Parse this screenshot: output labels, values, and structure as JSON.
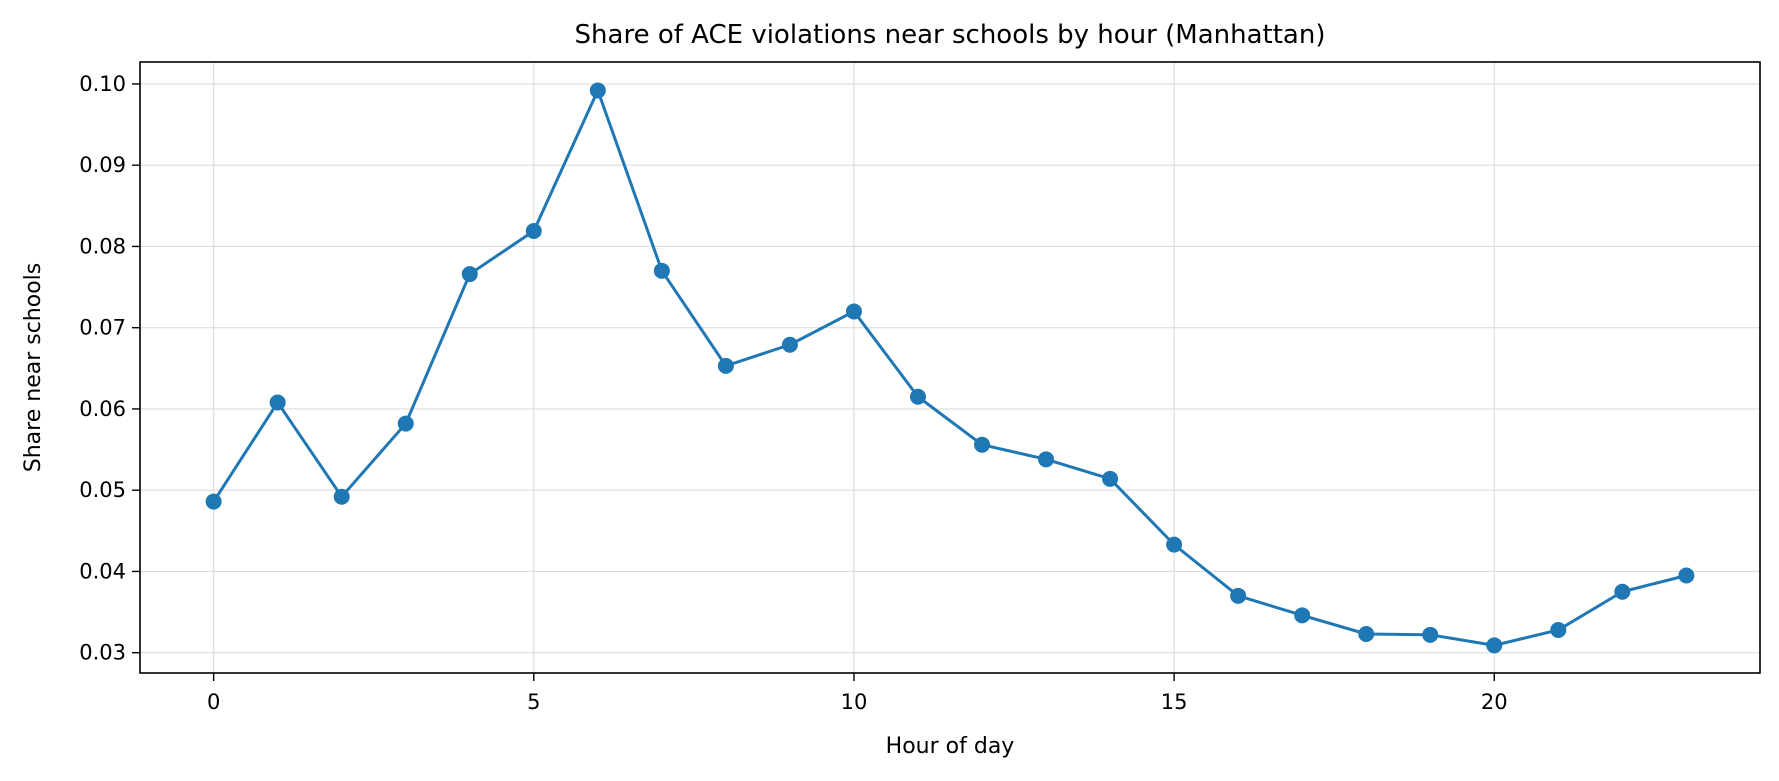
{
  "chart_data": {
    "type": "line",
    "title": "Share of ACE violations near schools by hour (Manhattan)",
    "xlabel": "Hour of day",
    "ylabel": "Share near schools",
    "xlim": [
      -1.15,
      24.15
    ],
    "ylim": [
      0.0275,
      0.1027
    ],
    "xticks": [
      0,
      5,
      10,
      15,
      20
    ],
    "yticks": [
      0.03,
      0.04,
      0.05,
      0.06,
      0.07,
      0.08,
      0.09,
      0.1
    ],
    "ytick_labels": [
      "0.03",
      "0.04",
      "0.05",
      "0.06",
      "0.07",
      "0.08",
      "0.09",
      "0.10"
    ],
    "grid": true,
    "marker": "circle",
    "series": [
      {
        "color": "#1f77b4",
        "x": [
          0,
          1,
          2,
          3,
          4,
          5,
          6,
          7,
          8,
          9,
          10,
          11,
          12,
          13,
          14,
          15,
          16,
          17,
          18,
          19,
          20,
          21,
          22,
          23
        ],
        "y": [
          0.0486,
          0.0608,
          0.0492,
          0.0582,
          0.0766,
          0.0819,
          0.0992,
          0.077,
          0.0653,
          0.0679,
          0.072,
          0.0615,
          0.0556,
          0.0538,
          0.0514,
          0.0433,
          0.037,
          0.0346,
          0.0323,
          0.0322,
          0.0309,
          0.0328,
          0.0375,
          0.0395
        ]
      }
    ]
  }
}
